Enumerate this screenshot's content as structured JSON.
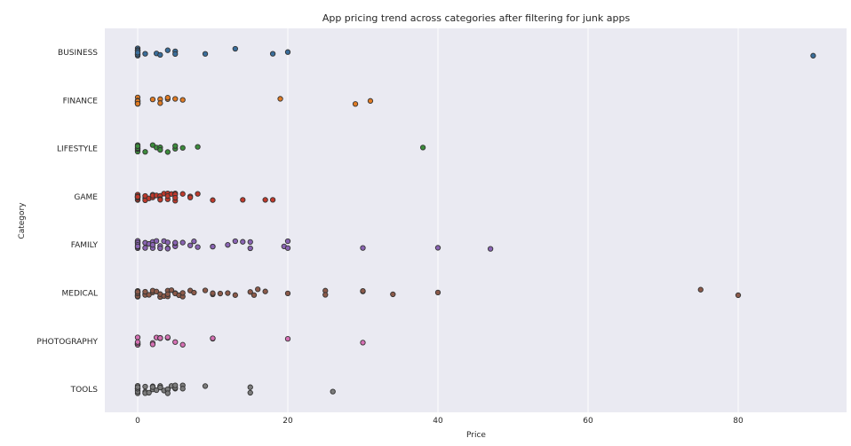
{
  "chart_data": {
    "type": "scatter",
    "title": "App pricing trend across categories after filtering for junk apps",
    "xlabel": "Price",
    "ylabel": "Category",
    "xlim": [
      -4.5,
      94
    ],
    "xticks": [
      0,
      20,
      40,
      60,
      80
    ],
    "grid": true,
    "categories": [
      "BUSINESS",
      "FINANCE",
      "LIFESTYLE",
      "GAME",
      "FAMILY",
      "MEDICAL",
      "PHOTOGRAPHY",
      "TOOLS"
    ],
    "series": [
      {
        "category": "BUSINESS",
        "color": "#3a6e9c",
        "values": [
          0,
          0,
          0,
          0,
          0,
          0,
          0,
          0,
          0,
          0,
          1,
          2.5,
          3,
          4,
          5,
          5,
          9,
          13,
          18,
          20,
          89.99
        ]
      },
      {
        "category": "FINANCE",
        "color": "#e07b24",
        "values": [
          0,
          0,
          0,
          0,
          0,
          0,
          0,
          0,
          0,
          2,
          3,
          3,
          4,
          4,
          5,
          6,
          19,
          29,
          31
        ]
      },
      {
        "category": "LIFESTYLE",
        "color": "#3c8c3c",
        "values": [
          0,
          0,
          0,
          0,
          0,
          0,
          0,
          0,
          1,
          2,
          2.5,
          3,
          3,
          4,
          5,
          5,
          6,
          8,
          38
        ]
      },
      {
        "category": "GAME",
        "color": "#c0392b",
        "values": [
          0,
          0,
          0,
          0,
          0,
          0,
          0,
          0,
          0,
          0,
          0,
          0,
          1,
          1,
          1,
          1.5,
          2,
          2,
          2,
          2.5,
          3,
          3,
          3,
          3.5,
          4,
          4,
          4,
          4.5,
          5,
          5,
          5,
          5,
          6,
          7,
          7,
          8,
          10,
          14,
          17,
          18
        ]
      },
      {
        "category": "FAMILY",
        "color": "#8a64b4",
        "values": [
          0,
          0,
          0,
          0,
          0,
          0,
          0,
          0,
          0,
          0,
          0,
          0,
          1,
          1,
          1,
          1.5,
          2,
          2,
          2,
          2.5,
          3,
          3,
          3,
          3.5,
          4,
          4,
          4,
          5,
          5,
          5,
          5,
          6,
          7,
          7.5,
          8,
          10,
          10,
          12,
          13,
          14,
          15,
          15,
          19.5,
          20,
          20,
          30,
          40,
          47
        ]
      },
      {
        "category": "MEDICAL",
        "color": "#8c5a4a",
        "values": [
          0,
          0,
          0,
          0,
          0,
          0,
          0,
          0,
          0,
          0,
          0,
          0,
          1,
          1,
          1,
          1.5,
          2,
          2,
          2.5,
          3,
          3,
          3,
          3.5,
          4,
          4,
          4,
          4.5,
          5,
          5,
          5.5,
          6,
          6,
          7,
          7.5,
          9,
          10,
          10,
          11,
          12,
          13,
          15,
          15.5,
          16,
          17,
          20,
          25,
          25,
          30,
          30,
          34,
          40,
          75,
          80
        ]
      },
      {
        "category": "PHOTOGRAPHY",
        "color": "#d670b4",
        "values": [
          0,
          0,
          0,
          0,
          0,
          0,
          0,
          0,
          2,
          2,
          2.5,
          3,
          3,
          3,
          4,
          4,
          5,
          6,
          10,
          10,
          20,
          30
        ]
      },
      {
        "category": "TOOLS",
        "color": "#7c7c7c",
        "values": [
          0,
          0,
          0,
          0,
          0,
          0,
          0,
          0,
          0,
          0,
          1,
          1,
          1,
          1.5,
          2,
          2,
          2,
          2.5,
          3,
          3,
          3,
          3.5,
          4,
          4,
          4,
          4.5,
          5,
          5,
          5,
          6,
          6,
          9,
          15,
          15,
          26
        ]
      }
    ]
  }
}
